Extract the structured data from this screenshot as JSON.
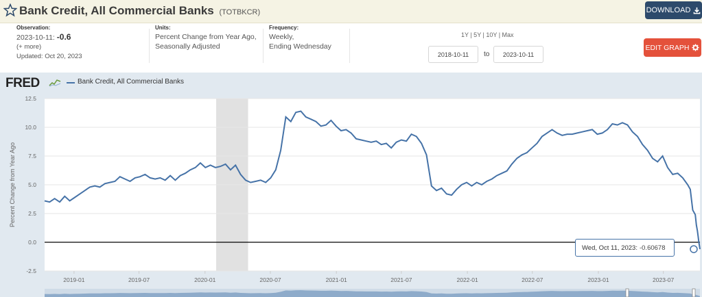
{
  "header": {
    "title": "Bank Credit, All Commercial Banks",
    "series_code": "(TOTBKCR)",
    "download_label": "DOWNLOAD"
  },
  "meta": {
    "observation_label": "Observation:",
    "observation_date": "2023-10-11:",
    "observation_value": "-0.6",
    "more_link": "(+ more)",
    "updated": "Updated: Oct 20, 2023",
    "units_label": "Units:",
    "units_line1": "Percent Change from Year Ago,",
    "units_line2": "Seasonally Adjusted",
    "frequency_label": "Frequency:",
    "frequency_line1": "Weekly,",
    "frequency_line2": "Ending Wednesday"
  },
  "range": {
    "options": "1Y | 5Y | 10Y | Max",
    "start": "2018-10-11",
    "to": "to",
    "end": "2023-10-11"
  },
  "edit_label": "EDIT GRAPH",
  "legend": {
    "logo": "FRED",
    "series_name": "Bank Credit, All Commercial Banks"
  },
  "tooltip": {
    "date": "Wed, Oct 11, 2023:",
    "value": "-0.60678"
  },
  "colors": {
    "line": "#4572a7",
    "recession": "#e1e1e1",
    "plot_bg": "#ffffff",
    "frame_bg": "#e1e9f0",
    "download": "#2d4a6b",
    "edit": "#e4513b"
  },
  "chart_data": {
    "type": "line",
    "ylabel": "Percent Change from Year Ago",
    "ylim": [
      -2.5,
      12.5
    ],
    "yticks": [
      "12.5",
      "10.0",
      "7.5",
      "5.0",
      "2.5",
      "0.0",
      "-2.5"
    ],
    "xticks": [
      "2019-01",
      "2019-07",
      "2020-01",
      "2020-07",
      "2021-01",
      "2021-07",
      "2022-01",
      "2022-07",
      "2023-01",
      "2023-07"
    ],
    "xlim": [
      "2018-10-11",
      "2023-10-11"
    ],
    "recession": [
      "2020-02-01",
      "2020-04-30"
    ],
    "zero_line": 0,
    "series": [
      {
        "name": "Bank Credit, All Commercial Banks",
        "points": [
          [
            "2018-10-11",
            3.6
          ],
          [
            "2018-10-25",
            3.5
          ],
          [
            "2018-11-08",
            3.8
          ],
          [
            "2018-11-22",
            3.5
          ],
          [
            "2018-12-06",
            4.0
          ],
          [
            "2018-12-20",
            3.6
          ],
          [
            "2019-01-03",
            3.9
          ],
          [
            "2019-01-17",
            4.2
          ],
          [
            "2019-01-31",
            4.5
          ],
          [
            "2019-02-14",
            4.8
          ],
          [
            "2019-02-28",
            4.9
          ],
          [
            "2019-03-14",
            4.8
          ],
          [
            "2019-03-28",
            5.1
          ],
          [
            "2019-04-11",
            5.2
          ],
          [
            "2019-04-25",
            5.3
          ],
          [
            "2019-05-09",
            5.7
          ],
          [
            "2019-05-23",
            5.5
          ],
          [
            "2019-06-06",
            5.3
          ],
          [
            "2019-06-20",
            5.6
          ],
          [
            "2019-07-04",
            5.7
          ],
          [
            "2019-07-18",
            5.9
          ],
          [
            "2019-08-01",
            5.6
          ],
          [
            "2019-08-15",
            5.5
          ],
          [
            "2019-08-29",
            5.6
          ],
          [
            "2019-09-12",
            5.4
          ],
          [
            "2019-09-26",
            5.8
          ],
          [
            "2019-10-10",
            5.4
          ],
          [
            "2019-10-24",
            5.8
          ],
          [
            "2019-11-07",
            6.0
          ],
          [
            "2019-11-21",
            6.3
          ],
          [
            "2019-12-05",
            6.5
          ],
          [
            "2019-12-19",
            6.9
          ],
          [
            "2020-01-02",
            6.5
          ],
          [
            "2020-01-16",
            6.7
          ],
          [
            "2020-01-30",
            6.5
          ],
          [
            "2020-02-13",
            6.6
          ],
          [
            "2020-02-27",
            6.8
          ],
          [
            "2020-03-12",
            6.3
          ],
          [
            "2020-03-26",
            6.7
          ],
          [
            "2020-04-09",
            5.9
          ],
          [
            "2020-04-23",
            5.4
          ],
          [
            "2020-05-07",
            5.2
          ],
          [
            "2020-05-21",
            5.3
          ],
          [
            "2020-06-04",
            5.4
          ],
          [
            "2020-06-18",
            5.2
          ],
          [
            "2020-07-02",
            5.6
          ],
          [
            "2020-07-16",
            6.3
          ],
          [
            "2020-07-30",
            8.0
          ],
          [
            "2020-08-13",
            10.9
          ],
          [
            "2020-08-27",
            10.5
          ],
          [
            "2020-09-10",
            11.3
          ],
          [
            "2020-09-24",
            11.4
          ],
          [
            "2020-10-08",
            10.9
          ],
          [
            "2020-10-22",
            10.7
          ],
          [
            "2020-11-05",
            10.5
          ],
          [
            "2020-11-19",
            10.1
          ],
          [
            "2020-12-03",
            10.2
          ],
          [
            "2020-12-17",
            10.6
          ],
          [
            "2020-12-31",
            10.1
          ],
          [
            "2021-01-14",
            9.7
          ],
          [
            "2021-01-28",
            9.8
          ],
          [
            "2021-02-11",
            9.5
          ],
          [
            "2021-02-25",
            9.0
          ],
          [
            "2021-03-11",
            8.9
          ],
          [
            "2021-03-25",
            8.8
          ],
          [
            "2021-04-08",
            8.7
          ],
          [
            "2021-04-22",
            8.8
          ],
          [
            "2021-05-06",
            8.5
          ],
          [
            "2021-05-20",
            8.6
          ],
          [
            "2021-06-03",
            8.2
          ],
          [
            "2021-06-17",
            8.7
          ],
          [
            "2021-07-01",
            8.9
          ],
          [
            "2021-07-15",
            8.8
          ],
          [
            "2021-07-29",
            9.4
          ],
          [
            "2021-08-12",
            9.2
          ],
          [
            "2021-08-26",
            8.6
          ],
          [
            "2021-09-09",
            7.6
          ],
          [
            "2021-09-23",
            4.9
          ],
          [
            "2021-10-07",
            4.5
          ],
          [
            "2021-10-21",
            4.7
          ],
          [
            "2021-11-04",
            4.2
          ],
          [
            "2021-11-18",
            4.1
          ],
          [
            "2021-12-02",
            4.6
          ],
          [
            "2021-12-16",
            5.0
          ],
          [
            "2021-12-30",
            5.2
          ],
          [
            "2022-01-13",
            4.9
          ],
          [
            "2022-01-27",
            5.2
          ],
          [
            "2022-02-10",
            5.0
          ],
          [
            "2022-02-24",
            5.3
          ],
          [
            "2022-03-10",
            5.5
          ],
          [
            "2022-03-24",
            5.8
          ],
          [
            "2022-04-07",
            6.0
          ],
          [
            "2022-04-21",
            6.2
          ],
          [
            "2022-05-05",
            6.8
          ],
          [
            "2022-05-19",
            7.3
          ],
          [
            "2022-06-02",
            7.6
          ],
          [
            "2022-06-16",
            7.8
          ],
          [
            "2022-06-30",
            8.2
          ],
          [
            "2022-07-14",
            8.6
          ],
          [
            "2022-07-28",
            9.2
          ],
          [
            "2022-08-11",
            9.5
          ],
          [
            "2022-08-25",
            9.8
          ],
          [
            "2022-09-08",
            9.5
          ],
          [
            "2022-09-22",
            9.3
          ],
          [
            "2022-10-06",
            9.4
          ],
          [
            "2022-10-20",
            9.4
          ],
          [
            "2022-11-03",
            9.5
          ],
          [
            "2022-11-17",
            9.6
          ],
          [
            "2022-12-01",
            9.7
          ],
          [
            "2022-12-15",
            9.8
          ],
          [
            "2022-12-29",
            9.4
          ],
          [
            "2023-01-12",
            9.5
          ],
          [
            "2023-01-26",
            9.8
          ],
          [
            "2023-02-09",
            10.3
          ],
          [
            "2023-02-23",
            10.2
          ],
          [
            "2023-03-09",
            10.4
          ],
          [
            "2023-03-23",
            10.2
          ],
          [
            "2023-04-06",
            9.6
          ],
          [
            "2023-04-20",
            9.2
          ],
          [
            "2023-05-04",
            8.5
          ],
          [
            "2023-05-18",
            8.0
          ],
          [
            "2023-06-01",
            7.3
          ],
          [
            "2023-06-15",
            7.0
          ],
          [
            "2023-06-29",
            7.5
          ],
          [
            "2023-07-13",
            6.5
          ],
          [
            "2023-07-27",
            5.9
          ],
          [
            "2023-08-10",
            6.0
          ],
          [
            "2023-08-24",
            5.6
          ],
          [
            "2023-09-07",
            5.0
          ],
          [
            "2023-09-14",
            4.6
          ],
          [
            "2023-09-21",
            2.8
          ],
          [
            "2023-09-28",
            2.4
          ],
          [
            "2023-10-01",
            1.5
          ],
          [
            "2023-10-04",
            1.0
          ],
          [
            "2023-10-06",
            0.5
          ],
          [
            "2023-10-08",
            0.0
          ],
          [
            "2023-10-09",
            -0.2
          ],
          [
            "2023-10-10",
            -0.4
          ],
          [
            "2023-10-11",
            -0.6
          ]
        ]
      }
    ]
  }
}
